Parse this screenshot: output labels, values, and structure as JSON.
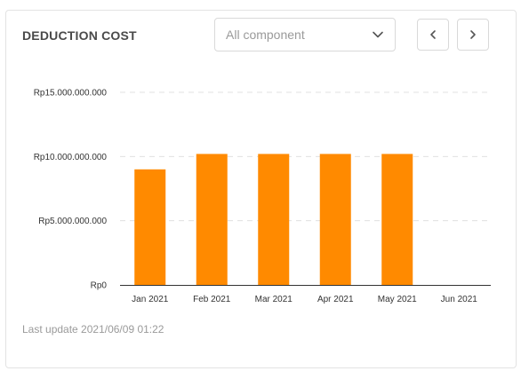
{
  "card": {
    "title": "DEDUCTION COST",
    "filter": {
      "selected": "All component"
    },
    "footer": "Last update 2021/06/09 01:22"
  },
  "colors": {
    "bar": "#ff8a00",
    "grid": "#e0e0e0",
    "axis": "#333333"
  },
  "icons": {
    "dropdown": "chevron-down-icon",
    "prev": "chevron-left-icon",
    "next": "chevron-right-icon"
  },
  "chart_data": {
    "type": "bar",
    "categories": [
      "Jan 2021",
      "Feb 2021",
      "Mar 2021",
      "Apr 2021",
      "May 2021",
      "Jun 2021"
    ],
    "values": [
      9000000000,
      10200000000,
      10200000000,
      10200000000,
      10200000000,
      0
    ],
    "ylim": [
      0,
      15000000000
    ],
    "yticks": [
      0,
      5000000000,
      10000000000,
      15000000000
    ],
    "ytick_labels": [
      "Rp0",
      "Rp5.000.000.000",
      "Rp10.000.000.000",
      "Rp15.000.000.000"
    ],
    "grid": true,
    "title": "",
    "xlabel": "",
    "ylabel": ""
  }
}
